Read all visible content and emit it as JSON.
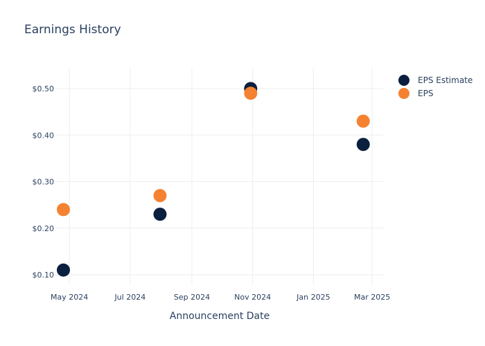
{
  "chart_data": {
    "type": "scatter",
    "title": "Earnings History",
    "xlabel": "Announcement Date",
    "ylabel": "",
    "x_ticks": [
      "May 2024",
      "Jul 2024",
      "Sep 2024",
      "Nov 2024",
      "Jan 2025",
      "Mar 2025"
    ],
    "y_ticks": [
      "$0.10",
      "$0.20",
      "$0.30",
      "$0.40",
      "$0.50"
    ],
    "grid": true,
    "legend_position": "top-right",
    "series": [
      {
        "name": "EPS Estimate",
        "color": "#0b1f3f",
        "points": [
          {
            "x": "2024-04-25",
            "y": 0.11
          },
          {
            "x": "2024-07-31",
            "y": 0.23
          },
          {
            "x": "2024-10-30",
            "y": 0.5
          },
          {
            "x": "2025-02-20",
            "y": 0.38
          }
        ]
      },
      {
        "name": "EPS",
        "color": "#f58231",
        "points": [
          {
            "x": "2024-04-25",
            "y": 0.24
          },
          {
            "x": "2024-07-31",
            "y": 0.27
          },
          {
            "x": "2024-10-30",
            "y": 0.49
          },
          {
            "x": "2025-02-20",
            "y": 0.43
          }
        ]
      }
    ]
  }
}
